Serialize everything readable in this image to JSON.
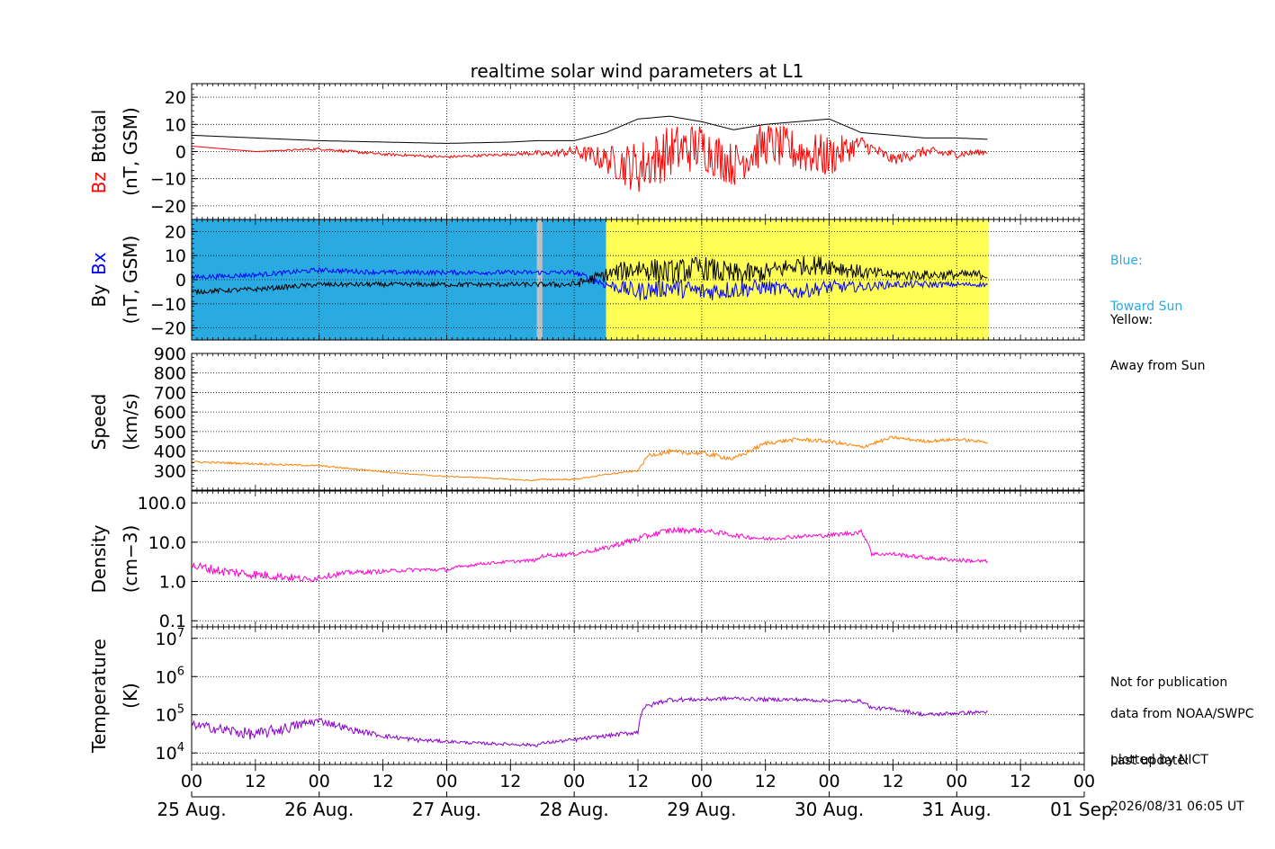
{
  "title": "realtime solar wind parameters at L1",
  "colors": {
    "bz": "#ff0000",
    "btotal": "#000000",
    "bx": "#0000ff",
    "by": "#000000",
    "speed": "#ff8000",
    "density": "#ff00cc",
    "temperature": "#8800cc",
    "toward": "#29abe2",
    "away": "#ffff55",
    "gap": "#c0c0c0"
  },
  "side_notes": {
    "blue_line1": "Blue:",
    "blue_line2": "Toward Sun",
    "yellow_line1": "Yellow:",
    "yellow_line2": "Away from Sun",
    "not_for_pub": "Not for publication",
    "data_from": "data from NOAA/SWPC",
    "plotted_by": "plotted by NICT",
    "last_update_label": "Last update:",
    "last_update": "2026/08/31 06:05 UT"
  },
  "chart_data": [
    {
      "type": "line",
      "panel": "Btotal / Bz",
      "ylabel_parts": [
        "Bz",
        "Btotal",
        "(nT, GSM)"
      ],
      "ylim": [
        -25,
        25
      ],
      "yticks": [
        20,
        10,
        0,
        -10,
        -20
      ],
      "ytick_labels": [
        "20",
        "10",
        "0",
        "−10",
        "−20"
      ],
      "grid": true,
      "series": [
        {
          "name": "Btotal",
          "color": "#000000",
          "x": [
            0,
            12,
            24,
            36,
            48,
            60,
            65,
            66,
            72,
            78,
            84,
            90,
            96,
            102,
            108,
            114,
            120,
            126,
            132,
            138,
            144,
            150
          ],
          "y": [
            6,
            5,
            4,
            3.5,
            3,
            3.5,
            4,
            4,
            4,
            7,
            12,
            13,
            11,
            8,
            10,
            11,
            12,
            7,
            6,
            5,
            5,
            4.5
          ]
        },
        {
          "name": "Bz",
          "color": "#ff0000",
          "x": [
            0,
            12,
            24,
            36,
            48,
            60,
            65,
            66,
            72,
            78,
            84,
            90,
            96,
            102,
            108,
            114,
            120,
            126,
            132,
            138,
            144,
            150
          ],
          "y": [
            2,
            0,
            1,
            -1,
            -2,
            -1,
            -0.5,
            -1,
            0,
            -3,
            -6,
            0,
            2,
            -5,
            3,
            0,
            -2,
            3,
            -3,
            0,
            -1,
            0
          ],
          "scatter": [
            0,
            0,
            0.5,
            0.5,
            0.5,
            0.5,
            1,
            1,
            2,
            5,
            10,
            10,
            9,
            8,
            8,
            8,
            8,
            3,
            2,
            2,
            1.5,
            1
          ]
        }
      ]
    },
    {
      "type": "line",
      "panel": "By / Bx",
      "ylabel_parts": [
        "By",
        "Bx",
        "(nT, GSM)"
      ],
      "ylim": [
        -25,
        25
      ],
      "yticks": [
        20,
        10,
        0,
        -10,
        -20
      ],
      "ytick_labels": [
        "20",
        "10",
        "0",
        "−10",
        "−20"
      ],
      "grid": true,
      "sector_background": [
        {
          "from": 0,
          "to": 65,
          "sector": "toward"
        },
        {
          "from": 65,
          "to": 66,
          "sector": "gap"
        },
        {
          "from": 66,
          "to": 78,
          "sector": "toward"
        },
        {
          "from": 78,
          "to": 150,
          "sector": "away"
        }
      ],
      "series": [
        {
          "name": "Bx",
          "color": "#0000ff",
          "x": [
            0,
            12,
            24,
            36,
            48,
            60,
            65,
            66,
            72,
            78,
            84,
            90,
            96,
            102,
            108,
            114,
            120,
            126,
            132,
            138,
            144,
            150
          ],
          "y": [
            1,
            2,
            4,
            3,
            3,
            3,
            3,
            3,
            3,
            -2,
            -5,
            -3,
            -5,
            -4,
            -3,
            -5,
            -3,
            -3,
            -2,
            -2,
            -2,
            -2
          ],
          "scatter": [
            1,
            1,
            1,
            1,
            1,
            1,
            1,
            1,
            1,
            2,
            4,
            4,
            4,
            4,
            3,
            3,
            3,
            2,
            1.5,
            1.5,
            1,
            1
          ]
        },
        {
          "name": "By",
          "color": "#000000",
          "x": [
            0,
            12,
            24,
            36,
            48,
            60,
            65,
            66,
            72,
            78,
            84,
            90,
            96,
            102,
            108,
            114,
            120,
            126,
            132,
            138,
            144,
            150
          ],
          "y": [
            -5,
            -4,
            -2,
            -2,
            -2,
            -2,
            -2,
            -2,
            -2,
            2,
            5,
            3,
            5,
            2,
            3,
            6,
            6,
            3,
            2,
            2,
            2,
            2
          ],
          "scatter": [
            1,
            1,
            1,
            1,
            1,
            1,
            1,
            1,
            1.5,
            3,
            5,
            5,
            5,
            5,
            4,
            4,
            4,
            3,
            2,
            2,
            2,
            2
          ]
        }
      ]
    },
    {
      "type": "line",
      "panel": "Speed",
      "ylabel_parts": [
        "Speed",
        "(km/s)"
      ],
      "ylim": [
        200,
        900
      ],
      "yticks": [
        900,
        800,
        700,
        600,
        500,
        400,
        300
      ],
      "ytick_labels": [
        "900",
        "800",
        "700",
        "600",
        "500",
        "400",
        "300"
      ],
      "grid": true,
      "series": [
        {
          "name": "Speed",
          "color": "#ff8000",
          "x": [
            0,
            6,
            12,
            18,
            24,
            30,
            36,
            42,
            48,
            54,
            60,
            64,
            66,
            72,
            78,
            84,
            86,
            90,
            96,
            102,
            108,
            114,
            120,
            126,
            132,
            138,
            144,
            150
          ],
          "y": [
            345,
            340,
            335,
            330,
            325,
            310,
            295,
            280,
            270,
            265,
            255,
            250,
            255,
            255,
            280,
            300,
            380,
            395,
            390,
            360,
            440,
            460,
            450,
            420,
            470,
            450,
            460,
            445
          ],
          "scatter": [
            5,
            5,
            5,
            5,
            4,
            4,
            4,
            3,
            3,
            3,
            3,
            3,
            3,
            3,
            4,
            4,
            10,
            12,
            12,
            12,
            10,
            10,
            10,
            10,
            8,
            8,
            8,
            6
          ]
        }
      ]
    },
    {
      "type": "line",
      "panel": "Density",
      "ylabel_parts": [
        "Density",
        "(cm−3)"
      ],
      "yscale": "log",
      "ylim": [
        0.07,
        200
      ],
      "yticks": [
        100,
        10,
        1,
        0.1
      ],
      "ytick_labels": [
        "100.0",
        "10.0",
        "1.0",
        "0.1"
      ],
      "grid": true,
      "series": [
        {
          "name": "Density",
          "color": "#ff00cc",
          "x": [
            0,
            6,
            12,
            18,
            22,
            24,
            30,
            36,
            42,
            48,
            54,
            60,
            65,
            66,
            72,
            78,
            84,
            90,
            96,
            102,
            108,
            114,
            120,
            126,
            128,
            132,
            138,
            144,
            150
          ],
          "y": [
            2.5,
            1.8,
            1.5,
            1.3,
            1.1,
            1.3,
            1.7,
            1.8,
            2.0,
            2.0,
            2.8,
            3.2,
            3.5,
            4.5,
            5.0,
            7.0,
            12,
            20,
            20,
            15,
            12,
            14,
            15,
            18,
            5.0,
            5.0,
            4.0,
            3.5,
            3.2
          ],
          "scatter": [
            0.12,
            0.12,
            0.12,
            0.1,
            0.08,
            0.08,
            0.06,
            0.05,
            0.05,
            0.05,
            0.04,
            0.04,
            0.04,
            0.05,
            0.05,
            0.06,
            0.08,
            0.08,
            0.06,
            0.06,
            0.05,
            0.05,
            0.05,
            0.06,
            0.05,
            0.05,
            0.05,
            0.05,
            0.05
          ]
        }
      ]
    },
    {
      "type": "line",
      "panel": "Temperature",
      "ylabel_parts": [
        "Temperature",
        "(K)"
      ],
      "yscale": "log",
      "ylim": [
        5000,
        20000000
      ],
      "yticks": [
        10000000,
        1000000,
        100000,
        10000
      ],
      "ytick_exponents": [
        "7",
        "6",
        "5",
        "4"
      ],
      "ytick_base": "10",
      "grid": true,
      "series": [
        {
          "name": "Temperature",
          "color": "#8800cc",
          "x": [
            0,
            6,
            12,
            18,
            24,
            30,
            36,
            42,
            48,
            54,
            60,
            65,
            66,
            72,
            78,
            84,
            85,
            90,
            96,
            102,
            108,
            114,
            120,
            126,
            128,
            132,
            138,
            144,
            150
          ],
          "y": [
            55000,
            40000,
            30000,
            45000,
            70000,
            40000,
            28000,
            22000,
            20000,
            18000,
            17000,
            16000,
            18000,
            22000,
            28000,
            35000,
            150000,
            250000,
            250000,
            270000,
            250000,
            250000,
            230000,
            230000,
            150000,
            140000,
            100000,
            110000,
            120000
          ],
          "scatter": [
            0.1,
            0.15,
            0.15,
            0.15,
            0.1,
            0.08,
            0.06,
            0.06,
            0.04,
            0.04,
            0.04,
            0.04,
            0.04,
            0.05,
            0.05,
            0.06,
            0.06,
            0.06,
            0.05,
            0.05,
            0.05,
            0.05,
            0.04,
            0.04,
            0.05,
            0.05,
            0.05,
            0.05,
            0.04
          ]
        }
      ]
    }
  ],
  "x_axis": {
    "hours_span": 168,
    "hour_labels": [
      "00",
      "12",
      "00",
      "12",
      "00",
      "12",
      "00",
      "12",
      "00",
      "12",
      "00",
      "12",
      "00",
      "12",
      "00"
    ],
    "date_labels": [
      "25 Aug.",
      "26 Aug.",
      "27 Aug.",
      "28 Aug.",
      "29 Aug.",
      "30 Aug.",
      "31 Aug.",
      "01 Sep."
    ]
  }
}
